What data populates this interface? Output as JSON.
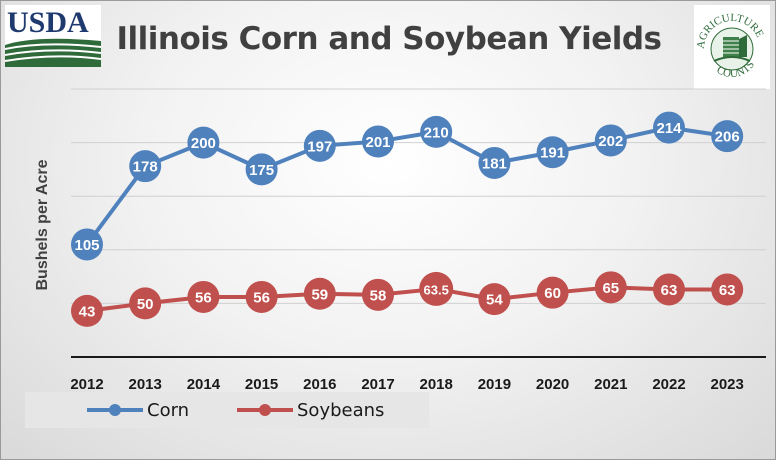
{
  "logos": {
    "usda_text": "USDA",
    "nass_top_text": "AGRICULTURE",
    "nass_bottom_text": "COUNTS"
  },
  "colors": {
    "corn": "#4f81bd",
    "soybeans": "#c0504d",
    "usda_green": "#2f6b3a",
    "usda_navy": "#1f3a6e"
  },
  "chart_data": {
    "type": "line",
    "title": "Illinois Corn and Soybean Yields",
    "xlabel": "",
    "ylabel": "Bushels per Acre",
    "categories": [
      "2012",
      "2013",
      "2014",
      "2015",
      "2016",
      "2017",
      "2018",
      "2019",
      "2020",
      "2021",
      "2022",
      "2023"
    ],
    "ylim": [
      0,
      250
    ],
    "grid": true,
    "legend_position": "bottom-left",
    "series": [
      {
        "name": "Corn",
        "values": [
          105,
          178,
          200,
          175,
          197,
          201,
          210,
          181,
          191,
          202,
          214,
          206
        ],
        "labels": [
          "105",
          "178",
          "200",
          "175",
          "197",
          "201",
          "210",
          "181",
          "191",
          "202",
          "214",
          "206"
        ]
      },
      {
        "name": "Soybeans",
        "values": [
          43,
          50,
          56,
          56,
          59,
          58,
          63.5,
          54,
          60,
          65,
          63,
          63
        ],
        "labels": [
          "43",
          "50",
          "56",
          "56",
          "59",
          "58",
          "63.5",
          "54",
          "60",
          "65",
          "63",
          "63"
        ]
      }
    ]
  }
}
